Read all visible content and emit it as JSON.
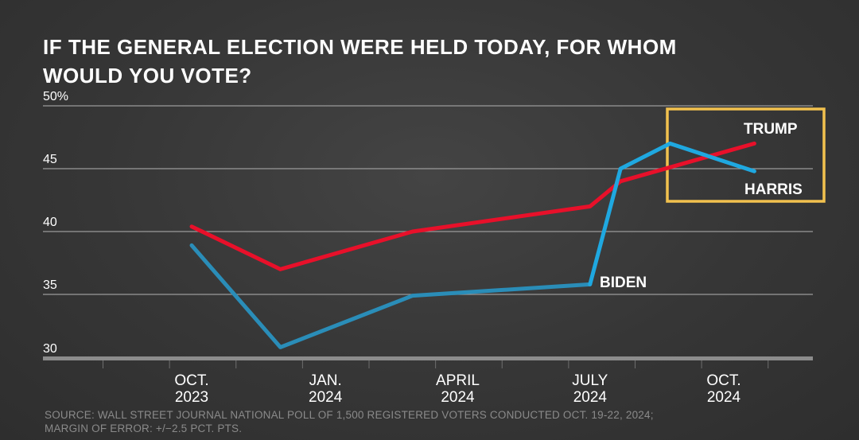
{
  "chart_data": {
    "type": "line",
    "title": "IF THE GENERAL ELECTION WERE HELD TODAY, FOR WHOM WOULD YOU VOTE?",
    "ylim": [
      30,
      50
    ],
    "y_ticks": [
      {
        "value": 50,
        "label": "50%"
      },
      {
        "value": 45,
        "label": "45"
      },
      {
        "value": 40,
        "label": "40"
      },
      {
        "value": 35,
        "label": "35"
      },
      {
        "value": 30,
        "label": "30"
      }
    ],
    "x_ticks": [
      {
        "line1": "OCT.",
        "line2": "2023",
        "date": "2023-10-01"
      },
      {
        "line1": "JAN.",
        "line2": "2024",
        "date": "2024-01-01"
      },
      {
        "line1": "APRIL",
        "line2": "2024",
        "date": "2024-04-01"
      },
      {
        "line1": "JULY",
        "line2": "2024",
        "date": "2024-07-01"
      },
      {
        "line1": "OCT.",
        "line2": "2024",
        "date": "2024-10-01"
      }
    ],
    "series": [
      {
        "name": "TRUMP",
        "color": "#e8102a",
        "points": [
          {
            "date": "2023-10-01",
            "value": 40.4
          },
          {
            "date": "2023-12-01",
            "value": 37
          },
          {
            "date": "2024-03-01",
            "value": 40
          },
          {
            "date": "2024-07-01",
            "value": 42
          },
          {
            "date": "2024-07-22",
            "value": 44
          },
          {
            "date": "2024-10-22",
            "value": 47
          }
        ]
      },
      {
        "name": "BIDEN",
        "color": "#2a8db8",
        "points": [
          {
            "date": "2023-10-01",
            "value": 38.9
          },
          {
            "date": "2023-12-01",
            "value": 30.8
          },
          {
            "date": "2024-03-01",
            "value": 34.9
          },
          {
            "date": "2024-07-01",
            "value": 35.8
          }
        ]
      },
      {
        "name": "HARRIS",
        "color": "#1fa8e0",
        "points": [
          {
            "date": "2024-07-01",
            "value": 35.8
          },
          {
            "date": "2024-07-22",
            "value": 45
          },
          {
            "date": "2024-08-25",
            "value": 47
          },
          {
            "date": "2024-10-22",
            "value": 44.8
          }
        ]
      }
    ],
    "highlight_box_color": "#f2c14e",
    "grid": true,
    "source_lines": [
      "SOURCE: WALL STREET JOURNAL NATIONAL POLL OF 1,500 REGISTERED VOTERS CONDUCTED OCT. 19-22, 2024;",
      "MARGIN OF ERROR: +/−2.5 PCT. PTS."
    ]
  }
}
